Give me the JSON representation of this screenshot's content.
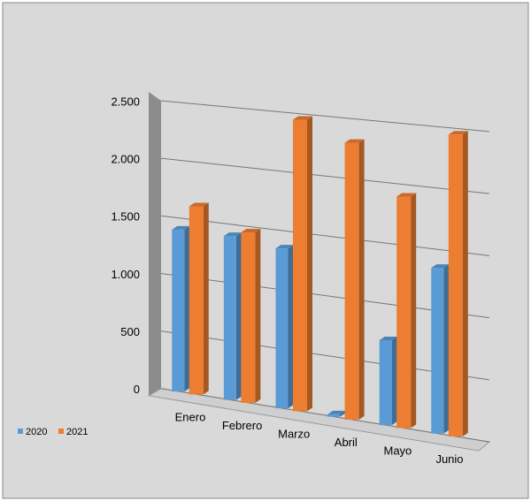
{
  "chart_data": {
    "type": "bar3d",
    "categories": [
      "Enero",
      "Febrero",
      "Marzo",
      "Abril",
      "Mayo",
      "Junio"
    ],
    "series": [
      {
        "name": "2020",
        "color": "#5b9bd5",
        "values": [
          1400,
          1400,
          1350,
          20,
          700,
          1350
        ]
      },
      {
        "name": "2021",
        "color": "#ed7d31",
        "values": [
          1620,
          1450,
          2450,
          2300,
          1900,
          2450
        ]
      }
    ],
    "ylim": [
      0,
      2500
    ],
    "yticks": [
      0,
      500,
      {
        "value": 1000,
        "label": "1.000"
      },
      {
        "value": 1500,
        "label": "1.500"
      },
      {
        "value": 2000,
        "label": "2.000"
      },
      {
        "value": 2500,
        "label": "2.500"
      }
    ],
    "grid": true,
    "legend": "bottom-left"
  }
}
